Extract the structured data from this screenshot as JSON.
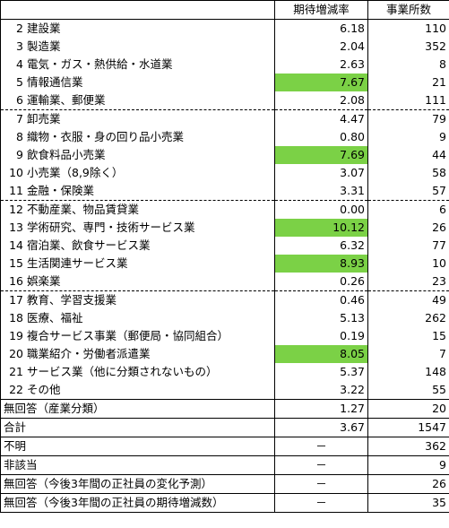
{
  "table": {
    "headers": [
      "",
      "期待増減率",
      "事業所数"
    ],
    "industries": [
      {
        "num": "2",
        "name": "建設業",
        "rate": "6.18",
        "count": "110",
        "highlight": false,
        "sep": "solid"
      },
      {
        "num": "3",
        "name": "製造業",
        "rate": "2.04",
        "count": "352",
        "highlight": false,
        "sep": "none"
      },
      {
        "num": "4",
        "name": "電気・ガス・熱供給・水道業",
        "rate": "2.63",
        "count": "8",
        "highlight": false,
        "sep": "none"
      },
      {
        "num": "5",
        "name": "情報通信業",
        "rate": "7.67",
        "count": "21",
        "highlight": true,
        "sep": "none"
      },
      {
        "num": "6",
        "name": "運輸業、郵便業",
        "rate": "2.08",
        "count": "111",
        "highlight": false,
        "sep": "none"
      },
      {
        "num": "7",
        "name": "卸売業",
        "rate": "4.47",
        "count": "79",
        "highlight": false,
        "sep": "dot"
      },
      {
        "num": "8",
        "name": "織物・衣服・身の回り品小売業",
        "rate": "0.80",
        "count": "9",
        "highlight": false,
        "sep": "none"
      },
      {
        "num": "9",
        "name": "飲食料品小売業",
        "rate": "7.69",
        "count": "44",
        "highlight": true,
        "sep": "none"
      },
      {
        "num": "10",
        "name": "小売業（8,9除く）",
        "rate": "3.07",
        "count": "58",
        "highlight": false,
        "sep": "none"
      },
      {
        "num": "11",
        "name": "金融・保険業",
        "rate": "3.31",
        "count": "57",
        "highlight": false,
        "sep": "none"
      },
      {
        "num": "12",
        "name": "不動産業、物品賃貸業",
        "rate": "0.00",
        "count": "6",
        "highlight": false,
        "sep": "dot"
      },
      {
        "num": "13",
        "name": "学術研究、専門・技術サービス業",
        "rate": "10.12",
        "count": "26",
        "highlight": true,
        "sep": "none"
      },
      {
        "num": "14",
        "name": "宿泊業、飲食サービス業",
        "rate": "6.32",
        "count": "77",
        "highlight": false,
        "sep": "none"
      },
      {
        "num": "15",
        "name": "生活関連サービス業",
        "rate": "8.93",
        "count": "10",
        "highlight": true,
        "sep": "none"
      },
      {
        "num": "16",
        "name": "娯楽業",
        "rate": "0.26",
        "count": "23",
        "highlight": false,
        "sep": "none"
      },
      {
        "num": "17",
        "name": "教育、学習支援業",
        "rate": "0.46",
        "count": "49",
        "highlight": false,
        "sep": "dot"
      },
      {
        "num": "18",
        "name": "医療、福祉",
        "rate": "5.13",
        "count": "262",
        "highlight": false,
        "sep": "none"
      },
      {
        "num": "19",
        "name": "複合サービス事業（郵便局・協同組合）",
        "rate": "0.19",
        "count": "15",
        "highlight": false,
        "sep": "none"
      },
      {
        "num": "20",
        "name": "職業紹介・労働者派遣業",
        "rate": "8.05",
        "count": "7",
        "highlight": true,
        "sep": "none"
      },
      {
        "num": "21",
        "name": "サービス業（他に分類されないもの）",
        "rate": "5.37",
        "count": "148",
        "highlight": false,
        "sep": "none"
      },
      {
        "num": "22",
        "name": "その他",
        "rate": "3.22",
        "count": "55",
        "highlight": false,
        "sep": "none"
      }
    ],
    "others": [
      {
        "label": "無回答（産業分類）",
        "rate": "1.27",
        "count": "20"
      },
      {
        "label": "合計",
        "rate": "3.67",
        "count": "1547"
      },
      {
        "label": "不明",
        "rate": "－",
        "count": "362"
      },
      {
        "label": "非該当",
        "rate": "－",
        "count": "9"
      },
      {
        "label": "無回答（今後3年間の正社員の変化予測）",
        "rate": "－",
        "count": "26"
      },
      {
        "label": "無回答（今後3年間の正社員の期待増減数）",
        "rate": "－",
        "count": "35"
      }
    ],
    "highlight_color": "#7bd146"
  }
}
